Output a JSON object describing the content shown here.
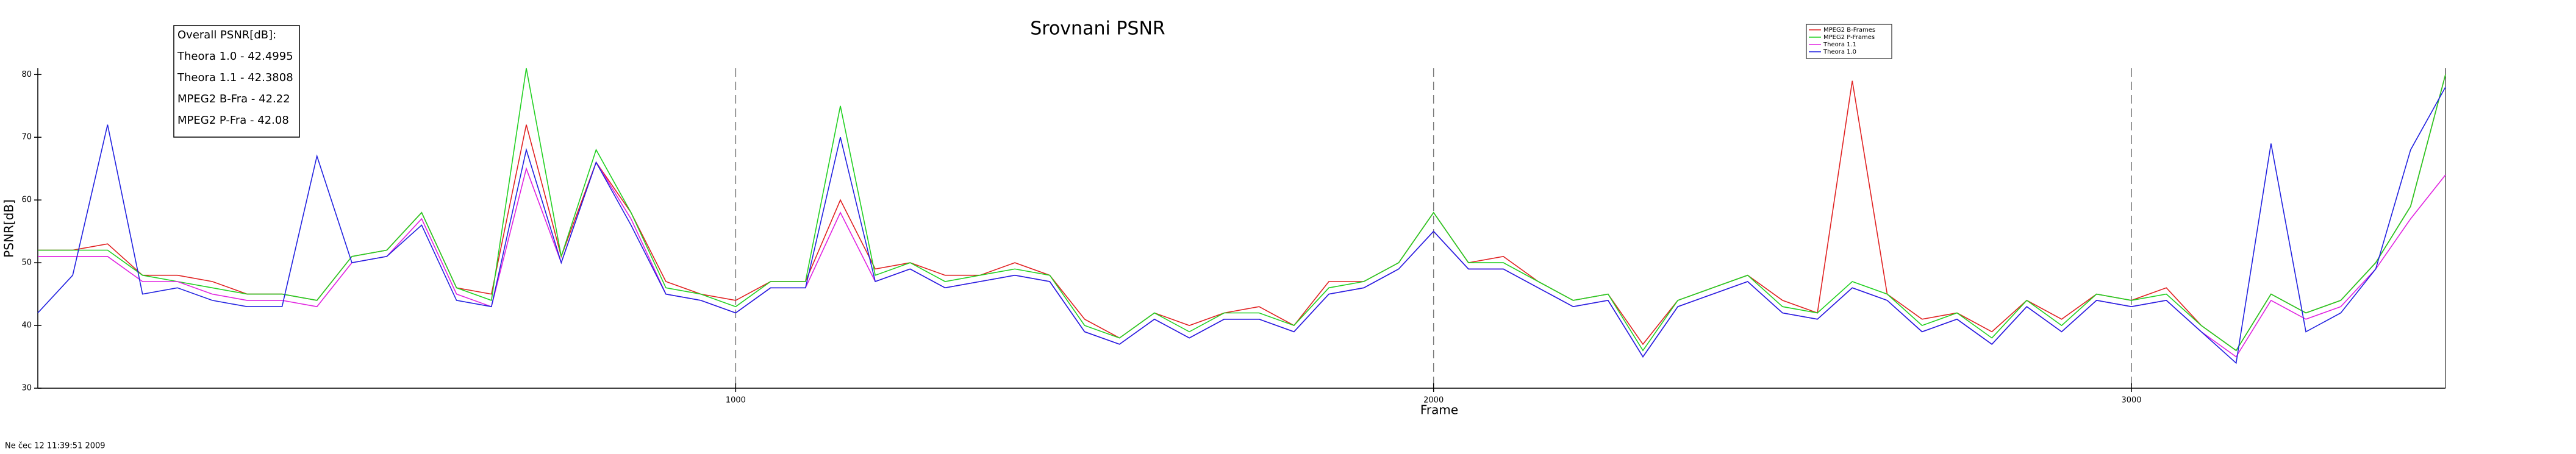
{
  "chart_data": {
    "type": "line",
    "title": "Srovnani PSNR",
    "xlabel": "Frame",
    "ylabel": "PSNR[dB]",
    "annotations": [
      "Overall PSNR[dB]:",
      "Theora 1.0 - 42.4995",
      "Theora 1.1 - 42.3808",
      "MPEG2 B-Fra - 42.22",
      "MPEG2 P-Fra - 42.08"
    ],
    "footer": "Ne čec 12 11:39:51 2009",
    "x": [
      0,
      50,
      100,
      150,
      200,
      250,
      300,
      350,
      400,
      450,
      500,
      550,
      600,
      650,
      700,
      750,
      800,
      850,
      900,
      950,
      1000,
      1050,
      1100,
      1150,
      1200,
      1250,
      1300,
      1350,
      1400,
      1450,
      1500,
      1550,
      1600,
      1650,
      1700,
      1750,
      1800,
      1850,
      1900,
      1950,
      2000,
      2050,
      2100,
      2150,
      2200,
      2250,
      2300,
      2350,
      2400,
      2450,
      2500,
      2550,
      2600,
      2650,
      2700,
      2750,
      2800,
      2850,
      2900,
      2950,
      3000,
      3050,
      3100,
      3150,
      3200,
      3250,
      3300,
      3350,
      3400,
      3450
    ],
    "series": [
      {
        "name": "MPEG2 B-Frames",
        "color": "#e02020",
        "values": [
          52,
          52,
          53,
          48,
          48,
          47,
          45,
          45,
          44,
          51,
          52,
          58,
          46,
          45,
          72,
          51,
          66,
          58,
          47,
          45,
          44,
          47,
          47,
          60,
          49,
          50,
          48,
          48,
          50,
          48,
          41,
          38,
          42,
          40,
          42,
          43,
          40,
          47,
          47,
          50,
          58,
          50,
          51,
          47,
          44,
          45,
          37,
          44,
          46,
          48,
          44,
          42,
          79,
          45,
          41,
          42,
          39,
          44,
          41,
          45,
          44,
          46,
          40,
          36,
          45,
          42,
          44,
          50,
          59,
          80
        ]
      },
      {
        "name": "MPEG2 P-Frames",
        "color": "#20d020",
        "values": [
          52,
          52,
          52,
          48,
          47,
          46,
          45,
          45,
          44,
          51,
          52,
          58,
          46,
          44,
          81,
          51,
          68,
          58,
          46,
          45,
          43,
          47,
          47,
          75,
          48,
          50,
          47,
          48,
          49,
          48,
          40,
          38,
          42,
          39,
          42,
          42,
          40,
          46,
          47,
          50,
          58,
          50,
          50,
          47,
          44,
          45,
          36,
          44,
          46,
          48,
          43,
          42,
          47,
          45,
          40,
          42,
          38,
          44,
          40,
          45,
          44,
          45,
          40,
          36,
          45,
          42,
          44,
          50,
          59,
          80
        ]
      },
      {
        "name": "Theora 1.1",
        "color": "#e020e0",
        "values": [
          51,
          51,
          51,
          47,
          47,
          45,
          44,
          44,
          43,
          50,
          51,
          57,
          45,
          43,
          65,
          50,
          66,
          57,
          45,
          44,
          42,
          46,
          46,
          58,
          47,
          49,
          46,
          47,
          48,
          47,
          39,
          37,
          41,
          38,
          41,
          41,
          39,
          45,
          46,
          49,
          55,
          49,
          49,
          46,
          43,
          44,
          35,
          43,
          45,
          47,
          42,
          41,
          46,
          44,
          39,
          41,
          37,
          43,
          39,
          44,
          43,
          44,
          39,
          35,
          44,
          41,
          43,
          49,
          57,
          64
        ]
      },
      {
        "name": "Theora 1.0",
        "color": "#2020e0",
        "values": [
          42,
          48,
          72,
          45,
          46,
          44,
          43,
          43,
          67,
          50,
          51,
          56,
          44,
          43,
          68,
          50,
          66,
          56,
          45,
          44,
          42,
          46,
          46,
          70,
          47,
          49,
          46,
          47,
          48,
          47,
          39,
          37,
          41,
          38,
          41,
          41,
          39,
          45,
          46,
          49,
          55,
          49,
          49,
          46,
          43,
          44,
          35,
          43,
          45,
          47,
          42,
          41,
          46,
          44,
          39,
          41,
          37,
          43,
          39,
          44,
          43,
          44,
          39,
          34,
          69,
          39,
          42,
          49,
          68,
          78
        ]
      }
    ],
    "xlim": [
      0,
      3450
    ],
    "ylim": [
      30,
      81
    ],
    "xticks": [
      1000,
      2000,
      3000
    ],
    "yticks": [
      30,
      40,
      50,
      60,
      70,
      80
    ],
    "grid": true,
    "legend": "upper right"
  }
}
